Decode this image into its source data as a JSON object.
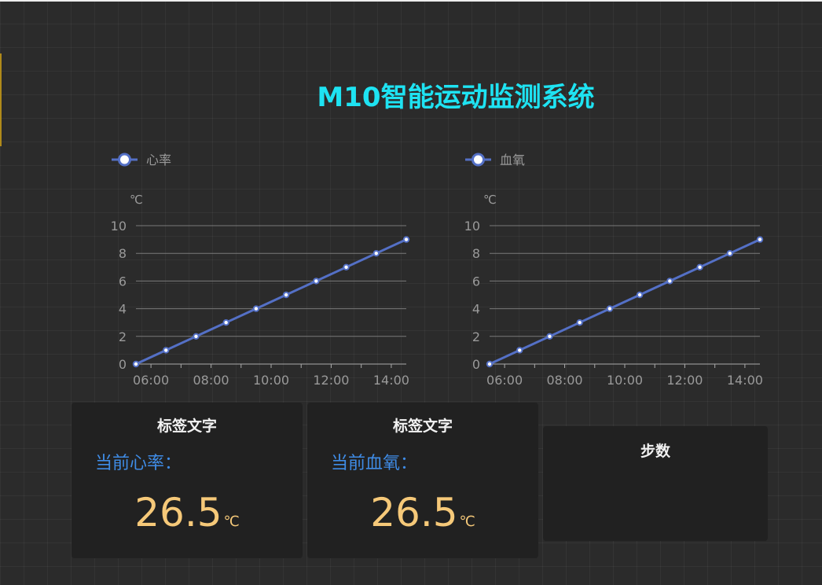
{
  "page": {
    "title": "M10智能运动监测系统"
  },
  "chart_data": [
    {
      "type": "line",
      "legend": "心率",
      "ylabel": "℃",
      "x": [
        "05:30",
        "06:30",
        "07:30",
        "08:30",
        "09:30",
        "10:30",
        "11:30",
        "12:30",
        "13:30",
        "14:30"
      ],
      "xticks": [
        "06:00",
        "08:00",
        "10:00",
        "12:00",
        "14:00"
      ],
      "values": [
        0,
        1,
        2,
        3,
        4,
        5,
        6,
        7,
        8,
        9
      ],
      "ylim": [
        0,
        10
      ],
      "yticks": [
        0,
        2,
        4,
        6,
        8,
        10
      ],
      "color": "#5470c6",
      "grid": true,
      "legend_position": "top-left"
    },
    {
      "type": "line",
      "legend": "血氧",
      "ylabel": "℃",
      "x": [
        "05:30",
        "06:30",
        "07:30",
        "08:30",
        "09:30",
        "10:30",
        "11:30",
        "12:30",
        "13:30",
        "14:30"
      ],
      "xticks": [
        "06:00",
        "08:00",
        "10:00",
        "12:00",
        "14:00"
      ],
      "values": [
        0,
        1,
        2,
        3,
        4,
        5,
        6,
        7,
        8,
        9
      ],
      "ylim": [
        0,
        10
      ],
      "yticks": [
        0,
        2,
        4,
        6,
        8,
        10
      ],
      "color": "#5470c6",
      "grid": true,
      "legend_position": "top-left"
    }
  ],
  "cards": [
    {
      "title": "标签文字",
      "label": "当前心率：",
      "value": "26.5",
      "unit": "℃"
    },
    {
      "title": "标签文字",
      "label": "当前血氧：",
      "value": "26.5",
      "unit": "℃"
    },
    {
      "title": "步数"
    }
  ],
  "colors": {
    "background": "#2b2b2b",
    "title": "#1ee3f2",
    "series": "#5470c6",
    "label": "#3f8ce6",
    "value": "#f6c979",
    "card": "#212121"
  }
}
